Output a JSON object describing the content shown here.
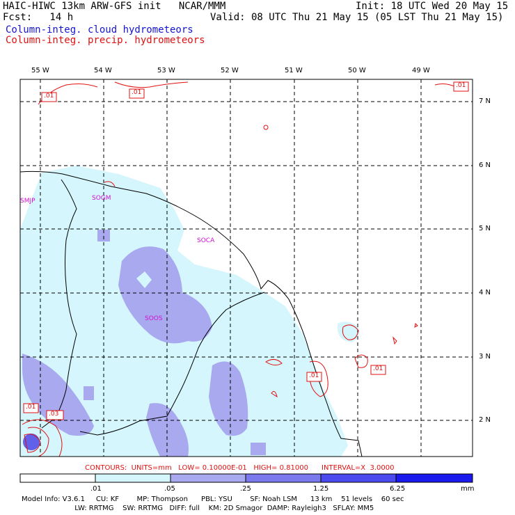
{
  "header": {
    "model_line": "HAIC-HIWC 13km ARW-GFS init   NCAR/MMM",
    "fcst_line": "Fcst:   14 h",
    "init_line": "Init: 18 UTC Wed 20 May 15",
    "valid_line": "Valid: 08 UTC Thu 21 May 15 (05 LST Thu 21 May 15)",
    "cloud_label": "Column-integ. cloud hydrometeors",
    "precip_label": "Column-integ. precip. hydrometeors"
  },
  "map": {
    "lon_labels": [
      "55 W",
      "54 W",
      "53 W",
      "52 W",
      "51 W",
      "50 W",
      "49 W"
    ],
    "lat_labels": [
      "7 N",
      "6 N",
      "5 N",
      "4 N",
      "3 N",
      "2 N"
    ],
    "stations": [
      "SMJP",
      "SOGM",
      "SOCA",
      "SOOS"
    ],
    "contour_labels": [
      ".01",
      ".01",
      ".01",
      ".01",
      ".01",
      ".01",
      ".03"
    ],
    "colors": {
      "cloud_light": "#d4f6fc",
      "cloud_medium": "#a9a9f0",
      "cloud_dark": "#7070ec",
      "precip_contour": "#e01010",
      "station": "#d010d0"
    }
  },
  "contours_note": "CONTOURS:  UNITS=mm   LOW= 0.10000E-01   HIGH= 0.81000      INTERVAL=X  3.0000",
  "colorbar": {
    "ticks": [
      ".01",
      ".05",
      ".25",
      "1.25",
      "6.25",
      "mm"
    ],
    "colors": [
      "#ffffff",
      "#d4f6fc",
      "#a9a9f0",
      "#8b8bef",
      "#5a5aee",
      "#3a3aee",
      "#1a1aee"
    ]
  },
  "model_info": {
    "line1": "Model Info: V3.6.1     CU: KF        MP: Thompson      PBL: YSU        SF: Noah LSM      13 km    51 levels    60 sec",
    "line2": "                        LW: RRTMG    SW: RRTMG   DIFF: full    KM: 2D Smagor  DAMP: Rayleigh3   SFLAY: MM5"
  }
}
